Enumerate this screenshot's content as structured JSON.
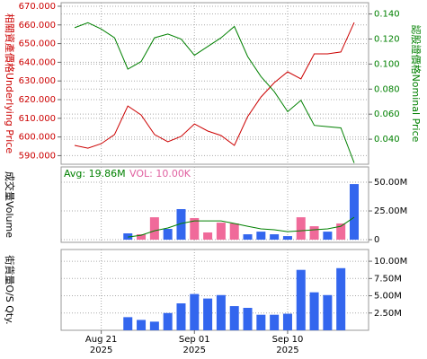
{
  "chart_data": [
    {
      "type": "line",
      "ylabel": "相關資產價格Underlying Price",
      "ylabel_color": "#cc0000",
      "y2label": "認股證價格Nominal Price",
      "y2label_color": "#008000",
      "x": [
        "2025-08-19",
        "2025-08-20",
        "2025-08-21",
        "2025-08-22",
        "2025-08-25",
        "2025-08-26",
        "2025-08-27",
        "2025-08-28",
        "2025-08-29",
        "2025-09-01",
        "2025-09-02",
        "2025-09-03",
        "2025-09-04",
        "2025-09-05",
        "2025-09-08",
        "2025-09-09",
        "2025-09-10",
        "2025-09-11",
        "2025-09-12",
        "2025-09-15",
        "2025-09-16",
        "2025-09-17"
      ],
      "ylim": [
        585.4,
        671.9
      ],
      "yticks": [
        {
          "value": 590,
          "label": "590.000"
        },
        {
          "value": 600,
          "label": "600.000"
        },
        {
          "value": 610,
          "label": "610.000"
        },
        {
          "value": 620,
          "label": "620.000"
        },
        {
          "value": 630,
          "label": "630.000"
        },
        {
          "value": 640,
          "label": "640.000"
        },
        {
          "value": 650,
          "label": "650.000"
        },
        {
          "value": 660,
          "label": "660.000"
        },
        {
          "value": 670,
          "label": "670.000"
        }
      ],
      "ytick_color": "#cc0000",
      "y2lim": [
        0.02,
        0.149
      ],
      "y2ticks": [
        {
          "value": 0.04,
          "label": "0.040"
        },
        {
          "value": 0.06,
          "label": "0.060"
        },
        {
          "value": 0.08,
          "label": "0.080"
        },
        {
          "value": 0.1,
          "label": "0.100"
        },
        {
          "value": 0.12,
          "label": "0.120"
        },
        {
          "value": 0.14,
          "label": "0.140"
        }
      ],
      "y2tick_color": "#008000",
      "grid": true,
      "series": [
        {
          "name": "Underlying Price",
          "type": "line",
          "color": "#cc0000",
          "values": [
            595.5,
            594.0,
            596.4,
            601.3,
            616.6,
            611.8,
            601.3,
            597.4,
            600.3,
            607.0,
            603.2,
            600.8,
            595.5,
            610.9,
            621.4,
            629.1,
            634.9,
            631.1,
            644.5,
            644.5,
            645.5,
            661.3
          ]
        },
        {
          "name": "Nominal Price",
          "type": "line",
          "axis": "y2",
          "color": "#008000",
          "values": [
            0.129,
            0.133,
            0.128,
            0.121,
            0.096,
            0.102,
            0.121,
            0.124,
            0.12,
            0.107,
            0.114,
            0.121,
            0.13,
            0.106,
            0.09,
            0.078,
            0.062,
            0.071,
            0.051,
            0.05,
            0.049,
            0.021
          ]
        }
      ]
    },
    {
      "type": "bar",
      "ylabel": "成交量Volume",
      "ylabel_color": "#000000",
      "annotations": [
        {
          "text": "Avg: 19.86M",
          "color": "#008000"
        },
        {
          "text": "VOL: 10.00K",
          "color": "#e060a0"
        }
      ],
      "x": [
        "2025-08-19",
        "2025-08-20",
        "2025-08-21",
        "2025-08-22",
        "2025-08-25",
        "2025-08-26",
        "2025-08-27",
        "2025-08-28",
        "2025-08-29",
        "2025-09-01",
        "2025-09-02",
        "2025-09-03",
        "2025-09-04",
        "2025-09-05",
        "2025-09-08",
        "2025-09-09",
        "2025-09-10",
        "2025-09-11",
        "2025-09-12",
        "2025-09-15",
        "2025-09-16",
        "2025-09-17"
      ],
      "ylim": [
        -2.3,
        63.3
      ],
      "yticks": [
        0,
        {
          "value": 25,
          "label": "25.00M"
        },
        {
          "value": 50,
          "label": "50.00M"
        }
      ],
      "y_axis_side": "right",
      "grid": true,
      "series": [
        {
          "name": "Volume",
          "type": "bar",
          "values": [
            null,
            null,
            null,
            null,
            5.5,
            4.7,
            19.5,
            9.4,
            26.6,
            18.8,
            6.3,
            14.8,
            14.1,
            4.7,
            7.0,
            4.7,
            3.1,
            19.5,
            11.7,
            7.0,
            14.1,
            48.4
          ],
          "colors": [
            null,
            null,
            null,
            null,
            "#3366ee",
            "#f06a9a",
            "#f06a9a",
            "#3366ee",
            "#3366ee",
            "#f06a9a",
            "#f06a9a",
            "#f06a9a",
            "#f06a9a",
            "#3366ee",
            "#3366ee",
            "#3366ee",
            "#3366ee",
            "#f06a9a",
            "#f06a9a",
            "#3366ee",
            "#f06a9a",
            "#3366ee"
          ]
        },
        {
          "name": "Average",
          "type": "line",
          "color": "#008000",
          "values": [
            null,
            null,
            null,
            null,
            2.3,
            3.9,
            7.8,
            10.2,
            14.1,
            16.4,
            16.4,
            16.4,
            14.1,
            11.7,
            9.4,
            8.6,
            7.0,
            7.8,
            8.6,
            9.4,
            11.7,
            19.5
          ]
        }
      ]
    },
    {
      "type": "bar",
      "ylabel": "街貨量O/S Qty.",
      "ylabel_color": "#000000",
      "x": [
        "2025-08-19",
        "2025-08-20",
        "2025-08-21",
        "2025-08-22",
        "2025-08-25",
        "2025-08-26",
        "2025-08-27",
        "2025-08-28",
        "2025-08-29",
        "2025-09-01",
        "2025-09-02",
        "2025-09-03",
        "2025-09-04",
        "2025-09-05",
        "2025-09-08",
        "2025-09-09",
        "2025-09-10",
        "2025-09-11",
        "2025-09-12",
        "2025-09-15",
        "2025-09-16",
        "2025-09-17"
      ],
      "xticks": [
        {
          "value": "2025-08-21",
          "label": [
            "Aug 21",
            "2025"
          ]
        },
        {
          "value": "2025-09-01",
          "label": [
            "Sep 01",
            "2025"
          ]
        },
        {
          "value": "2025-09-10",
          "label": [
            "Sep 10",
            "2025"
          ]
        }
      ],
      "ylim": [
        0,
        11.7
      ],
      "yticks": [
        {
          "value": 2.5,
          "label": "2.50M"
        },
        {
          "value": 5,
          "label": "5.00M"
        },
        {
          "value": 7.5,
          "label": "7.50M"
        },
        {
          "value": 10,
          "label": "10.00M"
        }
      ],
      "y_axis_side": "right",
      "grid": true,
      "series": [
        {
          "name": "O/S Qty.",
          "type": "bar",
          "color": "#3366ee",
          "values": [
            null,
            null,
            null,
            null,
            1.9,
            1.5,
            1.25,
            2.5,
            3.9,
            5.25,
            4.6,
            5.1,
            3.5,
            3.25,
            2.25,
            2.25,
            2.4,
            8.75,
            5.5,
            5.1,
            9.0,
            null
          ]
        }
      ]
    }
  ]
}
